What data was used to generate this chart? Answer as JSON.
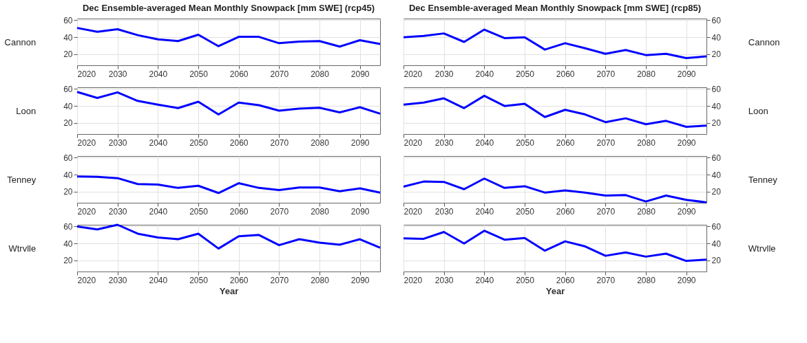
{
  "chart_data": [
    {
      "type": "line",
      "title": "Dec Ensemble-averaged Mean Monthly Snowpack [mm SWE] (rcp45)",
      "ylabel": "Cannon",
      "x": [
        2020,
        2025,
        2030,
        2035,
        2040,
        2045,
        2050,
        2055,
        2060,
        2065,
        2070,
        2075,
        2080,
        2085,
        2090,
        2095
      ],
      "series": [
        {
          "color": "#0000ff",
          "values": [
            51,
            46.5,
            49.5,
            42.5,
            37.5,
            35.5,
            43,
            29.5,
            40.5,
            40.5,
            33,
            35,
            35.5,
            29,
            36.5,
            32
          ]
        }
      ],
      "xlim": [
        2020,
        2095
      ],
      "xticks": [
        2020,
        2030,
        2040,
        2050,
        2060,
        2070,
        2080,
        2090
      ],
      "ylim": [
        7,
        62
      ],
      "yticks": [
        20,
        40,
        60
      ],
      "grid": true
    },
    {
      "type": "line",
      "title": "Dec Ensemble-averaged Mean Monthly Snowpack [mm SWE] (rcp85)",
      "ylabel": "Cannon",
      "x": [
        2020,
        2025,
        2030,
        2035,
        2040,
        2045,
        2050,
        2055,
        2060,
        2065,
        2070,
        2075,
        2080,
        2085,
        2090,
        2095
      ],
      "series": [
        {
          "color": "#0000ff",
          "values": [
            40,
            41.5,
            44.5,
            34.5,
            49,
            39,
            40,
            25.5,
            33,
            27,
            20.5,
            25,
            19,
            20.5,
            15.5,
            17.5
          ]
        }
      ],
      "xlim": [
        2020,
        2095
      ],
      "xticks": [
        2020,
        2030,
        2040,
        2050,
        2060,
        2070,
        2080,
        2090
      ],
      "ylim": [
        7,
        62
      ],
      "yticks": [
        20,
        40,
        60
      ],
      "grid": true
    },
    {
      "type": "line",
      "ylabel": "Loon",
      "x": [
        2020,
        2025,
        2030,
        2035,
        2040,
        2045,
        2050,
        2055,
        2060,
        2065,
        2070,
        2075,
        2080,
        2085,
        2090,
        2095
      ],
      "series": [
        {
          "color": "#0000ff",
          "values": [
            56.5,
            49.5,
            56,
            46,
            41.5,
            37.5,
            45,
            30,
            44,
            41,
            34.5,
            37,
            38,
            32.5,
            38.5,
            31
          ]
        }
      ],
      "xlim": [
        2020,
        2095
      ],
      "xticks": [
        2020,
        2030,
        2040,
        2050,
        2060,
        2070,
        2080,
        2090
      ],
      "ylim": [
        7,
        62
      ],
      "yticks": [
        20,
        40,
        60
      ],
      "grid": true
    },
    {
      "type": "line",
      "ylabel": "Loon",
      "x": [
        2020,
        2025,
        2030,
        2035,
        2040,
        2045,
        2050,
        2055,
        2060,
        2065,
        2070,
        2075,
        2080,
        2085,
        2090,
        2095
      ],
      "series": [
        {
          "color": "#0000ff",
          "values": [
            41.5,
            44,
            49,
            37.5,
            52,
            40,
            42.5,
            27,
            35.5,
            30,
            21,
            25.5,
            18.5,
            22.5,
            15.5,
            17
          ]
        }
      ],
      "xlim": [
        2020,
        2095
      ],
      "xticks": [
        2020,
        2030,
        2040,
        2050,
        2060,
        2070,
        2080,
        2090
      ],
      "ylim": [
        7,
        62
      ],
      "yticks": [
        20,
        40,
        60
      ],
      "grid": true
    },
    {
      "type": "line",
      "ylabel": "Tenney",
      "x": [
        2020,
        2025,
        2030,
        2035,
        2040,
        2045,
        2050,
        2055,
        2060,
        2065,
        2070,
        2075,
        2080,
        2085,
        2090,
        2095
      ],
      "series": [
        {
          "color": "#0000ff",
          "values": [
            38,
            37.5,
            36,
            29,
            28.5,
            24.5,
            27,
            18.5,
            30,
            24.5,
            22,
            25,
            25,
            20.5,
            24,
            19
          ]
        }
      ],
      "xlim": [
        2020,
        2095
      ],
      "xticks": [
        2020,
        2030,
        2040,
        2050,
        2060,
        2070,
        2080,
        2090
      ],
      "ylim": [
        7,
        62
      ],
      "yticks": [
        20,
        40,
        60
      ],
      "grid": true
    },
    {
      "type": "line",
      "ylabel": "Tenney",
      "x": [
        2020,
        2025,
        2030,
        2035,
        2040,
        2045,
        2050,
        2055,
        2060,
        2065,
        2070,
        2075,
        2080,
        2085,
        2090,
        2095
      ],
      "series": [
        {
          "color": "#0000ff",
          "values": [
            26,
            32,
            31.5,
            23,
            35.5,
            24.5,
            26.5,
            19,
            21.5,
            19,
            15.5,
            16,
            8.5,
            15.5,
            10.5,
            7.5
          ]
        }
      ],
      "xlim": [
        2020,
        2095
      ],
      "xticks": [
        2020,
        2030,
        2040,
        2050,
        2060,
        2070,
        2080,
        2090
      ],
      "ylim": [
        7,
        62
      ],
      "yticks": [
        20,
        40,
        60
      ],
      "grid": true
    },
    {
      "type": "line",
      "ylabel": "Wtrvlle",
      "xlabel": "Year",
      "x": [
        2020,
        2025,
        2030,
        2035,
        2040,
        2045,
        2050,
        2055,
        2060,
        2065,
        2070,
        2075,
        2080,
        2085,
        2090,
        2095
      ],
      "series": [
        {
          "color": "#0000ff",
          "values": [
            60,
            56.5,
            62,
            51.5,
            47,
            45,
            51.5,
            34,
            48.5,
            50,
            38,
            45,
            41,
            38.5,
            45,
            35
          ]
        }
      ],
      "xlim": [
        2020,
        2095
      ],
      "xticks": [
        2020,
        2030,
        2040,
        2050,
        2060,
        2070,
        2080,
        2090
      ],
      "ylim": [
        7,
        62
      ],
      "yticks": [
        20,
        40,
        60
      ],
      "grid": true
    },
    {
      "type": "line",
      "ylabel": "Wtrvlle",
      "xlabel": "Year",
      "x": [
        2020,
        2025,
        2030,
        2035,
        2040,
        2045,
        2050,
        2055,
        2060,
        2065,
        2070,
        2075,
        2080,
        2085,
        2090,
        2095
      ],
      "series": [
        {
          "color": "#0000ff",
          "values": [
            46,
            45.5,
            53.5,
            40,
            55,
            44.5,
            46.5,
            31.5,
            42.5,
            36.5,
            25.5,
            29.5,
            24.5,
            28,
            19.5,
            21
          ]
        }
      ],
      "xlim": [
        2020,
        2095
      ],
      "xticks": [
        2020,
        2030,
        2040,
        2050,
        2060,
        2070,
        2080,
        2090
      ],
      "ylim": [
        7,
        62
      ],
      "yticks": [
        20,
        40,
        60
      ],
      "grid": true
    }
  ]
}
